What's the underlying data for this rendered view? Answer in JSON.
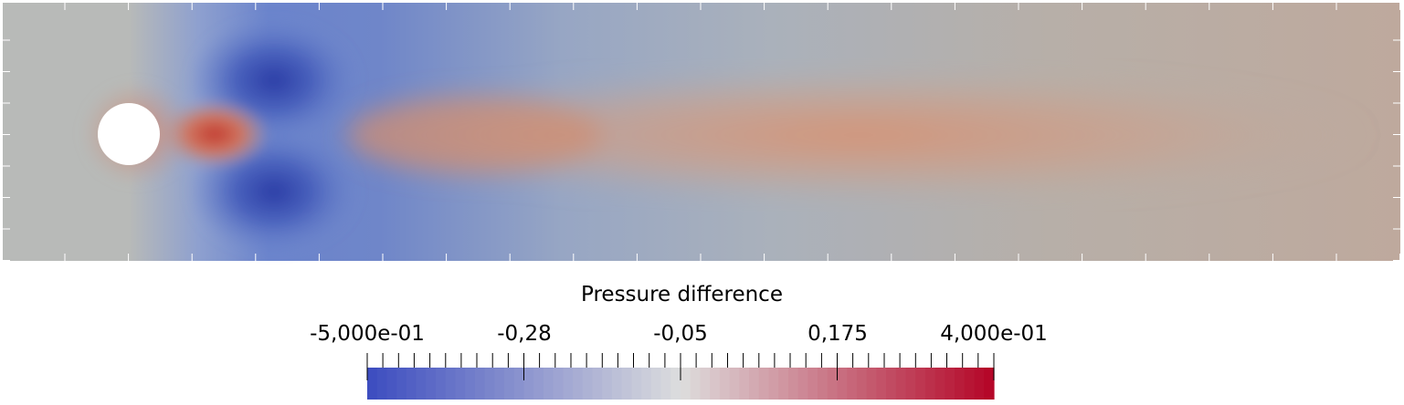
{
  "legend": {
    "title": "Pressure difference",
    "tick_labels": [
      "-5,000e-01",
      "-0,28",
      "-0,05",
      "0,175",
      "4,000e-01"
    ],
    "range": [
      -0.5,
      0.4
    ],
    "colormap": "cool-to-warm",
    "colors": {
      "low": "#3b4cc0",
      "mid": "#dddddd",
      "high": "#b40426"
    }
  },
  "field": {
    "obstacle": "circle",
    "obstacle_color": "#ffffff"
  }
}
